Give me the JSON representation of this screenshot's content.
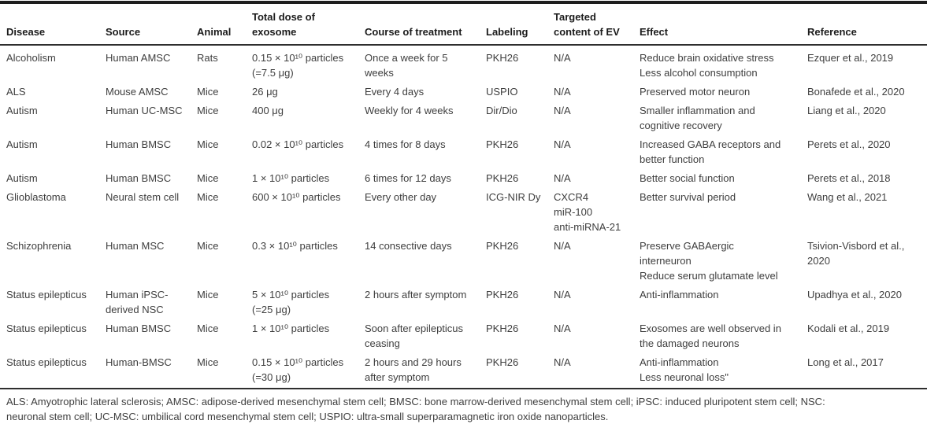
{
  "table": {
    "columns": [
      {
        "key": "disease",
        "label": "Disease"
      },
      {
        "key": "source",
        "label": "Source"
      },
      {
        "key": "animal",
        "label": "Animal"
      },
      {
        "key": "dose",
        "label": "Total dose of\nexosome"
      },
      {
        "key": "course",
        "label": "Course of treatment"
      },
      {
        "key": "labeling",
        "label": "Labeling"
      },
      {
        "key": "targeted",
        "label": "Targeted\ncontent of EV"
      },
      {
        "key": "effect",
        "label": "Effect"
      },
      {
        "key": "reference",
        "label": "Reference"
      }
    ],
    "rows": [
      [
        "Alcoholism",
        "Human AMSC",
        "Rats",
        "0.15 × 10¹⁰ particles\n(=7.5 μg)",
        "Once a week for 5\nweeks",
        "PKH26",
        "N/A",
        "Reduce brain oxidative stress\nLess alcohol consumption",
        "Ezquer et al., 2019"
      ],
      [
        "ALS",
        "Mouse AMSC",
        "Mice",
        "26 μg",
        "Every 4 days",
        "USPIO",
        "N/A",
        "Preserved motor neuron",
        "Bonafede et al., 2020"
      ],
      [
        "Autism",
        "Human UC-MSC",
        "Mice",
        "400 μg",
        "Weekly for 4 weeks",
        "Dir/Dio",
        "N/A",
        "Smaller inflammation and\ncognitive recovery",
        "Liang et al., 2020"
      ],
      [
        "Autism",
        "Human BMSC",
        "Mice",
        "0.02 × 10¹⁰ particles",
        "4 times for 8 days",
        "PKH26",
        "N/A",
        "Increased GABA receptors and\nbetter function",
        "Perets et al., 2020"
      ],
      [
        "Autism",
        "Human BMSC",
        "Mice",
        "1 × 10¹⁰ particles",
        "6 times for 12 days",
        "PKH26",
        "N/A",
        "Better social function",
        "Perets et al., 2018"
      ],
      [
        "Glioblastoma",
        "Neural stem cell",
        "Mice",
        "600 × 10¹⁰ particles",
        "Every other day",
        "ICG-NIR Dy",
        "CXCR4\nmiR-100\nanti-miRNA-21",
        "Better survival period",
        "Wang et al., 2021"
      ],
      [
        "Schizophrenia",
        "Human MSC",
        "Mice",
        "0.3 × 10¹⁰ particles",
        "14 consective days",
        "PKH26",
        "N/A",
        "Preserve GABAergic\ninterneuron\nReduce serum glutamate level",
        "Tsivion-Visbord et al.,\n2020"
      ],
      [
        "Status epilepticus",
        "Human iPSC-\nderived NSC",
        "Mice",
        "5 × 10¹⁰ particles\n(=25 μg)",
        "2 hours after symptom",
        "PKH26",
        "N/A",
        "Anti-inflammation",
        "Upadhya et al., 2020"
      ],
      [
        "Status epilepticus",
        "Human BMSC",
        "Mice",
        "1 × 10¹⁰ particles",
        "Soon after epilepticus\nceasing",
        "PKH26",
        "N/A",
        "Exosomes are well observed in\nthe damaged neurons",
        "Kodali et al., 2019"
      ],
      [
        "Status epilepticus",
        "Human-BMSC",
        "Mice",
        "0.15 × 10¹⁰ particles\n(=30 μg)",
        "2 hours and 29 hours\nafter symptom",
        "PKH26",
        "N/A",
        "Anti-inflammation\nLess neuronal loss\"",
        "Long et al., 2017"
      ]
    ]
  },
  "footnote": "ALS: Amyotrophic lateral sclerosis; AMSC: adipose-derived mesenchymal stem cell; BMSC: bone marrow-derived mesenchymal stem cell; iPSC: induced pluripotent stem cell; NSC:\nneuronal stem cell; UC-MSC: umbilical cord mesenchymal stem cell; USPIO: ultra-small superparamagnetic iron oxide nanoparticles."
}
